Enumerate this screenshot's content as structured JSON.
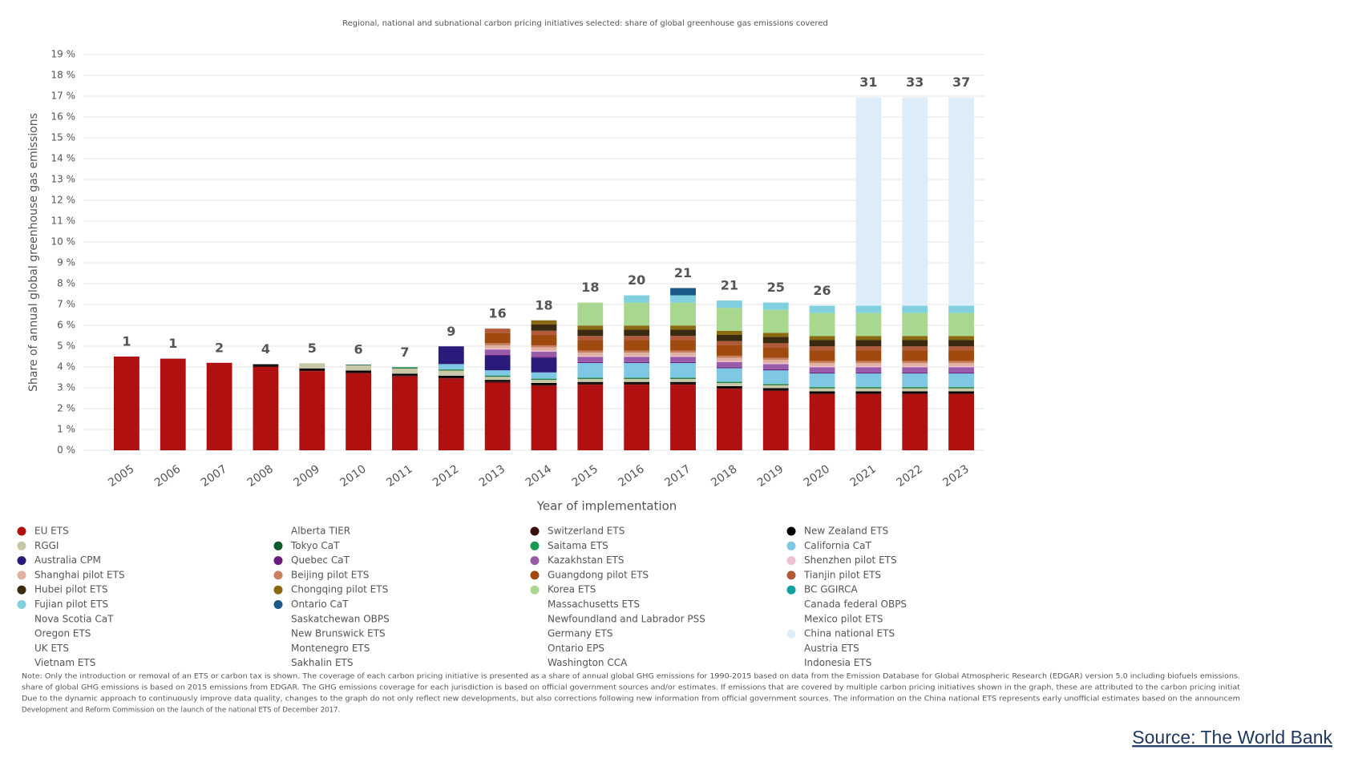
{
  "chart_data": {
    "type": "stacked_bar",
    "title": "Regional, national and subnational carbon pricing initiatives selected: share of global greenhouse gas emissions covered",
    "y_label": "Share of annual global greenhouse gas emissions",
    "x_label": "Year of implementation",
    "categories": [
      "2005",
      "2006",
      "2007",
      "2008",
      "2009",
      "2010",
      "2011",
      "2012",
      "2013",
      "2014",
      "2015",
      "2016",
      "2017",
      "2018",
      "2019",
      "2020",
      "2021",
      "2022",
      "2023"
    ],
    "initiative_counts": [
      1,
      1,
      2,
      4,
      5,
      6,
      7,
      9,
      16,
      18,
      18,
      20,
      21,
      21,
      25,
      26,
      31,
      33,
      37
    ],
    "ylim": [
      0,
      19
    ],
    "yticks": [
      {
        "value": 0,
        "label": "0 %"
      },
      {
        "value": 1,
        "label": "1 %"
      },
      {
        "value": 2,
        "label": "2 %"
      },
      {
        "value": 3,
        "label": "3 %"
      },
      {
        "value": 4,
        "label": "4 %"
      },
      {
        "value": 5,
        "label": "5 %"
      },
      {
        "value": 6,
        "label": "6 %"
      },
      {
        "value": 7,
        "label": "7 %"
      },
      {
        "value": 8,
        "label": "8 %"
      },
      {
        "value": 9,
        "label": "9 %"
      },
      {
        "value": 10,
        "label": "10 %"
      },
      {
        "value": 11,
        "label": "11 %"
      },
      {
        "value": 12,
        "label": "12 %"
      },
      {
        "value": 13,
        "label": "13 %"
      },
      {
        "value": 14,
        "label": "14 %"
      },
      {
        "value": 15,
        "label": "15 %"
      },
      {
        "value": 16,
        "label": "16 %"
      },
      {
        "value": 17,
        "label": "17 %"
      },
      {
        "value": 18,
        "label": "18 %"
      },
      {
        "value": 19,
        "label": "19 %"
      }
    ],
    "grid": true,
    "series": [
      {
        "name": "EU ETS",
        "color": "#b01010",
        "values": [
          4.5,
          4.4,
          4.2,
          4.0,
          3.8,
          3.7,
          3.55,
          3.45,
          3.25,
          3.1,
          3.15,
          3.15,
          3.15,
          2.95,
          2.85,
          2.7,
          2.7,
          2.7,
          2.7
        ]
      },
      {
        "name": "Alberta TIER",
        "values": [
          null,
          null,
          null,
          null,
          null,
          null,
          null,
          null,
          null,
          null,
          null,
          null,
          null,
          null,
          null,
          null,
          null,
          null,
          null
        ]
      },
      {
        "name": "Switzerland ETS",
        "color": "#3b0a0a",
        "values": [
          null,
          null,
          null,
          0.05,
          0.05,
          0.05,
          0.05,
          0.05,
          0.05,
          0.05,
          0.05,
          0.05,
          0.05,
          0.05,
          0.05,
          0.05,
          0.05,
          0.05,
          0.05
        ]
      },
      {
        "name": "New Zealand ETS",
        "color": "#000000",
        "values": [
          null,
          null,
          null,
          0.08,
          0.08,
          0.08,
          0.08,
          0.08,
          0.08,
          0.08,
          0.08,
          0.08,
          0.08,
          0.08,
          0.08,
          0.08,
          0.08,
          0.08,
          0.08
        ]
      },
      {
        "name": "RGGI",
        "color": "#c8c8a8",
        "values": [
          null,
          null,
          null,
          null,
          0.25,
          0.25,
          0.25,
          0.25,
          0.15,
          0.15,
          0.15,
          0.15,
          0.15,
          0.15,
          0.15,
          0.15,
          0.15,
          0.15,
          0.15
        ]
      },
      {
        "name": "Tokyo CaT",
        "color": "#0a5a2a",
        "values": [
          null,
          null,
          null,
          null,
          null,
          0.03,
          0.03,
          0.03,
          0.03,
          0.03,
          0.03,
          0.03,
          0.03,
          0.03,
          0.03,
          0.03,
          0.03,
          0.03,
          0.03
        ]
      },
      {
        "name": "Saitama ETS",
        "color": "#1a9a50",
        "values": [
          null,
          null,
          null,
          null,
          null,
          null,
          0.03,
          0.03,
          0.03,
          0.03,
          0.03,
          0.03,
          0.03,
          0.03,
          0.03,
          0.03,
          0.03,
          0.03,
          0.03
        ]
      },
      {
        "name": "California CaT",
        "color": "#7ec8e3",
        "values": [
          null,
          null,
          null,
          null,
          null,
          null,
          null,
          0.25,
          0.25,
          0.3,
          0.7,
          0.7,
          0.7,
          0.65,
          0.65,
          0.65,
          0.65,
          0.65,
          0.65
        ]
      },
      {
        "name": "Australia CPM",
        "color": "#2a1a7a",
        "values": [
          null,
          null,
          null,
          null,
          null,
          null,
          null,
          0.85,
          0.7,
          0.7,
          null,
          null,
          null,
          null,
          null,
          null,
          null,
          null,
          null
        ]
      },
      {
        "name": "Quebec CaT",
        "color": "#6a1a7a",
        "values": [
          null,
          null,
          null,
          null,
          null,
          null,
          null,
          null,
          0.05,
          0.05,
          0.05,
          0.05,
          0.05,
          0.05,
          0.05,
          0.05,
          0.05,
          0.05,
          0.05
        ]
      },
      {
        "name": "Kazakhstan ETS",
        "color": "#9a5aaa",
        "values": [
          null,
          null,
          null,
          null,
          null,
          null,
          null,
          null,
          0.25,
          0.25,
          0.25,
          0.25,
          0.25,
          0.25,
          0.25,
          0.25,
          0.25,
          0.25,
          0.25
        ]
      },
      {
        "name": "Shenzhen pilot ETS",
        "color": "#f0c0d0",
        "values": [
          null,
          null,
          null,
          null,
          null,
          null,
          null,
          null,
          0.05,
          0.05,
          0.05,
          0.05,
          0.05,
          0.05,
          0.05,
          0.05,
          0.05,
          0.05,
          0.05
        ]
      },
      {
        "name": "Shanghai pilot ETS",
        "color": "#e0b0a0",
        "values": [
          null,
          null,
          null,
          null,
          null,
          null,
          null,
          null,
          0.15,
          0.15,
          0.15,
          0.15,
          0.15,
          0.15,
          0.15,
          0.15,
          0.15,
          0.15,
          0.15
        ]
      },
      {
        "name": "Beijing pilot ETS",
        "color": "#c88060",
        "values": [
          null,
          null,
          null,
          null,
          null,
          null,
          null,
          null,
          0.1,
          0.1,
          0.1,
          0.1,
          0.1,
          0.1,
          0.1,
          0.1,
          0.1,
          0.1,
          0.1
        ]
      },
      {
        "name": "Guangdong pilot ETS",
        "color": "#a04a10",
        "values": [
          null,
          null,
          null,
          null,
          null,
          null,
          null,
          null,
          0.5,
          0.5,
          0.5,
          0.5,
          0.5,
          0.5,
          0.5,
          0.5,
          0.5,
          0.5,
          0.5
        ]
      },
      {
        "name": "Tianjin pilot ETS",
        "color": "#b05a3a",
        "values": [
          null,
          null,
          null,
          null,
          null,
          null,
          null,
          null,
          0.2,
          0.2,
          0.2,
          0.2,
          0.2,
          0.2,
          0.2,
          0.2,
          0.2,
          0.2,
          0.2
        ]
      },
      {
        "name": "Hubei pilot ETS",
        "color": "#3a2a10",
        "values": [
          null,
          null,
          null,
          null,
          null,
          null,
          null,
          null,
          null,
          0.3,
          0.3,
          0.3,
          0.3,
          0.3,
          0.3,
          0.3,
          0.3,
          0.3,
          0.3
        ]
      },
      {
        "name": "Chongqing pilot ETS",
        "color": "#8a6a10",
        "values": [
          null,
          null,
          null,
          null,
          null,
          null,
          null,
          null,
          null,
          0.2,
          0.2,
          0.2,
          0.2,
          0.2,
          0.2,
          0.2,
          0.2,
          0.2,
          0.2
        ]
      },
      {
        "name": "Korea ETS",
        "color": "#a8d890",
        "values": [
          null,
          null,
          null,
          null,
          null,
          null,
          null,
          null,
          null,
          null,
          1.1,
          1.1,
          1.1,
          1.1,
          1.1,
          1.1,
          1.1,
          1.1,
          1.1
        ]
      },
      {
        "name": "BC GGIRCA",
        "color": "#10a0a0",
        "values": [
          null,
          null,
          null,
          null,
          null,
          null,
          null,
          null,
          null,
          null,
          null,
          null,
          null,
          null,
          null,
          null,
          null,
          null,
          null
        ]
      },
      {
        "name": "Fujian pilot ETS",
        "color": "#80d0e0",
        "values": [
          null,
          null,
          null,
          null,
          null,
          null,
          null,
          null,
          null,
          null,
          null,
          0.35,
          0.35,
          0.35,
          0.35,
          0.35,
          0.35,
          0.35,
          0.35
        ]
      },
      {
        "name": "Ontario CaT",
        "color": "#1a5a8a",
        "values": [
          null,
          null,
          null,
          null,
          null,
          null,
          null,
          null,
          null,
          null,
          null,
          null,
          0.35,
          null,
          null,
          null,
          null,
          null,
          null
        ]
      },
      {
        "name": "Massachusetts ETS",
        "values": [
          null,
          null,
          null,
          null,
          null,
          null,
          null,
          null,
          null,
          null,
          null,
          null,
          null,
          null,
          null,
          null,
          null,
          null,
          null
        ]
      },
      {
        "name": "Canada federal OBPS",
        "values": [
          null,
          null,
          null,
          null,
          null,
          null,
          null,
          null,
          null,
          null,
          null,
          null,
          null,
          null,
          null,
          null,
          null,
          null,
          null
        ]
      },
      {
        "name": "Nova Scotia CaT",
        "values": [
          null,
          null,
          null,
          null,
          null,
          null,
          null,
          null,
          null,
          null,
          null,
          null,
          null,
          null,
          null,
          null,
          null,
          null,
          null
        ]
      },
      {
        "name": "Saskatchewan OBPS",
        "values": [
          null,
          null,
          null,
          null,
          null,
          null,
          null,
          null,
          null,
          null,
          null,
          null,
          null,
          null,
          null,
          null,
          null,
          null,
          null
        ]
      },
      {
        "name": "Newfoundland and Labrador PSS",
        "values": [
          null,
          null,
          null,
          null,
          null,
          null,
          null,
          null,
          null,
          null,
          null,
          null,
          null,
          null,
          null,
          null,
          null,
          null,
          null
        ]
      },
      {
        "name": "Mexico pilot ETS",
        "values": [
          null,
          null,
          null,
          null,
          null,
          null,
          null,
          null,
          null,
          null,
          null,
          null,
          null,
          null,
          null,
          null,
          null,
          null,
          null
        ]
      },
      {
        "name": "Oregon ETS",
        "values": [
          null,
          null,
          null,
          null,
          null,
          null,
          null,
          null,
          null,
          null,
          null,
          null,
          null,
          null,
          null,
          null,
          null,
          null,
          null
        ]
      },
      {
        "name": "New Brunswick ETS",
        "values": [
          null,
          null,
          null,
          null,
          null,
          null,
          null,
          null,
          null,
          null,
          null,
          null,
          null,
          null,
          null,
          null,
          null,
          null,
          null
        ]
      },
      {
        "name": "Germany ETS",
        "values": [
          null,
          null,
          null,
          null,
          null,
          null,
          null,
          null,
          null,
          null,
          null,
          null,
          null,
          null,
          null,
          null,
          null,
          null,
          null
        ]
      },
      {
        "name": "China national ETS",
        "color": "#ddeefa",
        "values": [
          null,
          null,
          null,
          null,
          null,
          null,
          null,
          null,
          null,
          null,
          null,
          null,
          null,
          null,
          null,
          null,
          10,
          10,
          10
        ]
      },
      {
        "name": "UK ETS",
        "values": [
          null,
          null,
          null,
          null,
          null,
          null,
          null,
          null,
          null,
          null,
          null,
          null,
          null,
          null,
          null,
          null,
          null,
          null,
          null
        ]
      },
      {
        "name": "Montenegro ETS",
        "values": [
          null,
          null,
          null,
          null,
          null,
          null,
          null,
          null,
          null,
          null,
          null,
          null,
          null,
          null,
          null,
          null,
          null,
          null,
          null
        ]
      },
      {
        "name": "Ontario EPS",
        "values": [
          null,
          null,
          null,
          null,
          null,
          null,
          null,
          null,
          null,
          null,
          null,
          null,
          null,
          null,
          null,
          null,
          null,
          null,
          null
        ]
      },
      {
        "name": "Austria ETS",
        "values": [
          null,
          null,
          null,
          null,
          null,
          null,
          null,
          null,
          null,
          null,
          null,
          null,
          null,
          null,
          null,
          null,
          null,
          null,
          null
        ]
      },
      {
        "name": "Vietnam ETS",
        "values": [
          null,
          null,
          null,
          null,
          null,
          null,
          null,
          null,
          null,
          null,
          null,
          null,
          null,
          null,
          null,
          null,
          null,
          null,
          null
        ]
      },
      {
        "name": "Sakhalin ETS",
        "values": [
          null,
          null,
          null,
          null,
          null,
          null,
          null,
          null,
          null,
          null,
          null,
          null,
          null,
          null,
          null,
          null,
          null,
          null,
          null
        ]
      },
      {
        "name": "Washington CCA",
        "values": [
          null,
          null,
          null,
          null,
          null,
          null,
          null,
          null,
          null,
          null,
          null,
          null,
          null,
          null,
          null,
          null,
          null,
          null,
          null
        ]
      },
      {
        "name": "Indonesia ETS",
        "values": [
          null,
          null,
          null,
          null,
          null,
          null,
          null,
          null,
          null,
          null,
          null,
          null,
          null,
          null,
          null,
          null,
          null,
          null,
          null
        ]
      }
    ],
    "note": [
      "Note: Only the introduction or removal of an ETS or carbon tax is shown. The coverage of each carbon pricing initiative is presented as a share of annual global GHG emissions for 1990-2015 based on data from the Emission Database for Global Atmospheric Research (EDGAR) version 5.0 including biofuels emissions.",
      "share of global GHG emissions is based on 2015 emissions from EDGAR. The GHG emissions coverage for each jurisdiction is based on official government sources and/or estimates. If emissions that are covered by multiple carbon pricing initiatives shown in the graph, these are attributed to the carbon pricing initiat",
      "Due to the dynamic approach to continuously improve data quality, changes to the graph do not only reflect new developments, but also corrections following new information from official government sources. The information on the China national ETS represents early unofficial estimates based on the announcem",
      "Development and Reform Commission on the launch of the national ETS of December 2017."
    ],
    "source": "Source: The World Bank"
  }
}
